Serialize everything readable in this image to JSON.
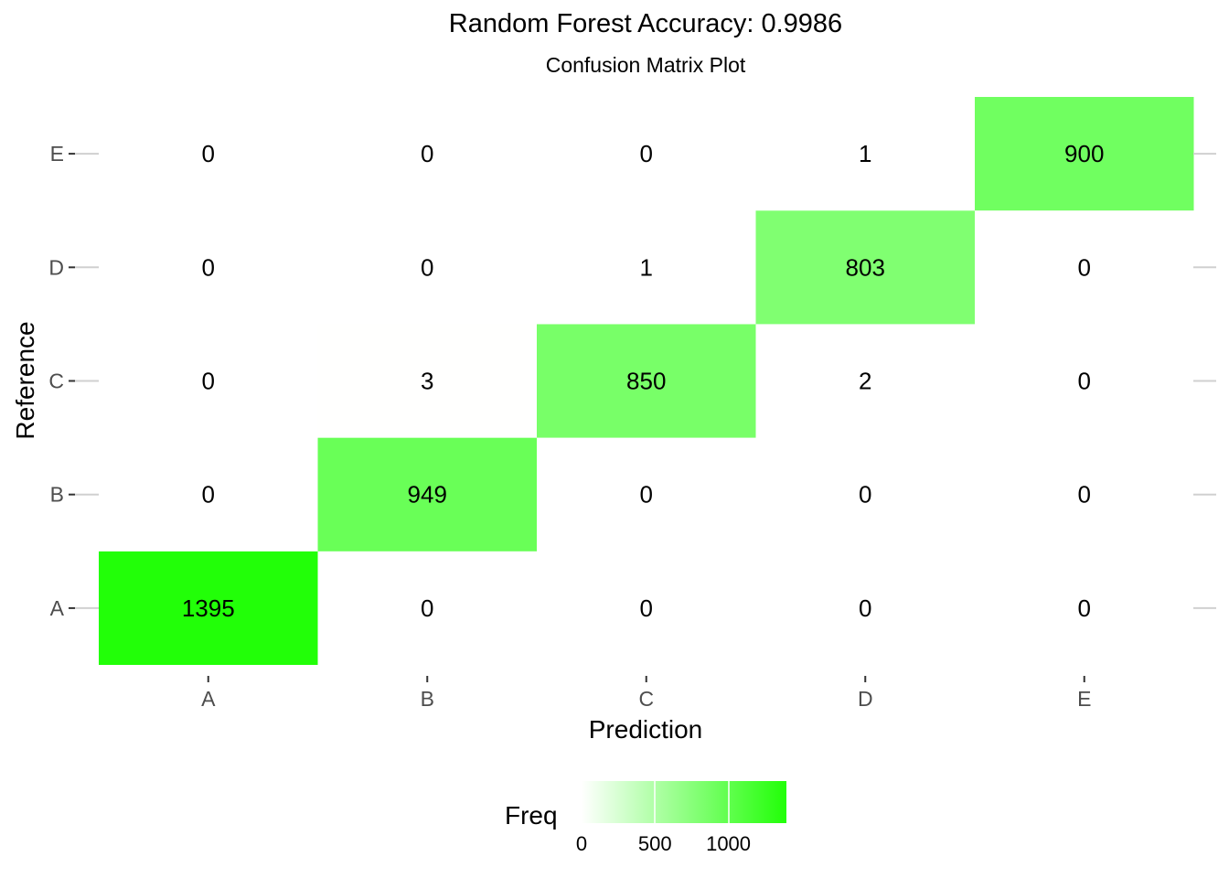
{
  "chart_data": {
    "type": "heatmap",
    "title": "Random Forest Accuracy: 0.9986",
    "subtitle": "Confusion Matrix Plot",
    "xlabel": "Prediction",
    "ylabel": "Reference",
    "x_categories": [
      "A",
      "B",
      "C",
      "D",
      "E"
    ],
    "y_categories": [
      "A",
      "B",
      "C",
      "D",
      "E"
    ],
    "cells": [
      {
        "reference": "A",
        "prediction": "A",
        "freq": 1395
      },
      {
        "reference": "A",
        "prediction": "B",
        "freq": 0
      },
      {
        "reference": "A",
        "prediction": "C",
        "freq": 0
      },
      {
        "reference": "A",
        "prediction": "D",
        "freq": 0
      },
      {
        "reference": "A",
        "prediction": "E",
        "freq": 0
      },
      {
        "reference": "B",
        "prediction": "A",
        "freq": 0
      },
      {
        "reference": "B",
        "prediction": "B",
        "freq": 949
      },
      {
        "reference": "B",
        "prediction": "C",
        "freq": 0
      },
      {
        "reference": "B",
        "prediction": "D",
        "freq": 0
      },
      {
        "reference": "B",
        "prediction": "E",
        "freq": 0
      },
      {
        "reference": "C",
        "prediction": "A",
        "freq": 0
      },
      {
        "reference": "C",
        "prediction": "B",
        "freq": 3
      },
      {
        "reference": "C",
        "prediction": "C",
        "freq": 850
      },
      {
        "reference": "C",
        "prediction": "D",
        "freq": 2
      },
      {
        "reference": "C",
        "prediction": "E",
        "freq": 0
      },
      {
        "reference": "D",
        "prediction": "A",
        "freq": 0
      },
      {
        "reference": "D",
        "prediction": "B",
        "freq": 0
      },
      {
        "reference": "D",
        "prediction": "C",
        "freq": 1
      },
      {
        "reference": "D",
        "prediction": "D",
        "freq": 803
      },
      {
        "reference": "D",
        "prediction": "E",
        "freq": 0
      },
      {
        "reference": "E",
        "prediction": "A",
        "freq": 0
      },
      {
        "reference": "E",
        "prediction": "B",
        "freq": 0
      },
      {
        "reference": "E",
        "prediction": "C",
        "freq": 0
      },
      {
        "reference": "E",
        "prediction": "D",
        "freq": 1
      },
      {
        "reference": "E",
        "prediction": "E",
        "freq": 900
      }
    ],
    "legend": {
      "title": "Freq",
      "ticks": [
        "0",
        "500",
        "1000"
      ],
      "tick_values": [
        0,
        500,
        1000
      ],
      "range": [
        0,
        1395
      ],
      "low_color": "#ffffff",
      "high_color": "#22ff08",
      "placement": "bottom"
    },
    "grid": false
  }
}
